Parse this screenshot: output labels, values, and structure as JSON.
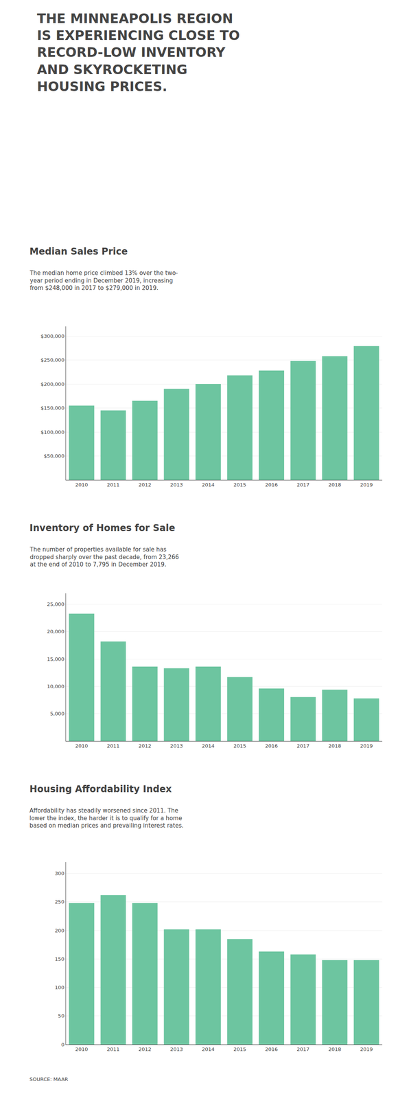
{
  "title": "THE MINNEAPOLIS REGION\nIS EXPERIENCING CLOSE TO\nRECORD-LOW INVENTORY\nAND SKYROCKETING\nHOUSING PRICES.",
  "annotations": [
    "SOURCE: MAAR"
  ],
  "chart_data": [
    {
      "type": "bar",
      "title": "Median Sales Price",
      "subtitle": "The median home price climbed 13% over the two-\nyear period ending in December 2019, increasing\nfrom $248,000 in 2017 to $279,000 in 2019.",
      "categories": [
        "2010",
        "2011",
        "2012",
        "2013",
        "2014",
        "2015",
        "2016",
        "2017",
        "2018",
        "2019"
      ],
      "values": [
        155000,
        145000,
        165000,
        190000,
        200000,
        218000,
        228000,
        248000,
        258000,
        279000
      ],
      "color": "#6DC5A0",
      "ylim": [
        0,
        320000
      ],
      "yticks": [
        {
          "value": 50000,
          "label": "$50,000"
        },
        {
          "value": 100000,
          "label": "$100,000"
        },
        {
          "value": 150000,
          "label": "$150,000"
        },
        {
          "value": 200000,
          "label": "$200,000"
        },
        {
          "value": 250000,
          "label": "$250,000"
        },
        {
          "value": 300000,
          "label": "$300,000"
        }
      ],
      "grid": true
    },
    {
      "type": "bar",
      "title": "Inventory of Homes for Sale",
      "subtitle": "The number of properties available for sale has\ndropped sharply over the past decade, from 23,266\nat the end of 2010 to 7,795 in December 2019.",
      "categories": [
        "2010",
        "2011",
        "2012",
        "2013",
        "2014",
        "2015",
        "2016",
        "2017",
        "2018",
        "2019"
      ],
      "values": [
        23266,
        18200,
        13600,
        13300,
        13600,
        11700,
        9600,
        8050,
        9400,
        7795
      ],
      "color": "#6DC5A0",
      "ylim": [
        0,
        27000
      ],
      "yticks": [
        {
          "value": 5000,
          "label": "5,000"
        },
        {
          "value": 10000,
          "label": "10,000"
        },
        {
          "value": 15000,
          "label": "15,000"
        },
        {
          "value": 20000,
          "label": "20,000"
        },
        {
          "value": 25000,
          "label": "25,000"
        }
      ],
      "grid": true
    },
    {
      "type": "bar",
      "title": "Housing Affordability Index",
      "subtitle": "Affordability has steadily worsened since 2011. The\nlower the index, the harder it is to qualify for a home\nbased on median prices and prevailing interest rates.",
      "categories": [
        "2010",
        "2011",
        "2012",
        "2013",
        "2014",
        "2015",
        "2016",
        "2017",
        "2018",
        "2019"
      ],
      "values": [
        248,
        262,
        248,
        202,
        202,
        185,
        163,
        158,
        148,
        148
      ],
      "color": "#6DC5A0",
      "ylim": [
        0,
        320
      ],
      "yticks": [
        0,
        50,
        100,
        150,
        200,
        250,
        300
      ],
      "grid": true
    }
  ]
}
